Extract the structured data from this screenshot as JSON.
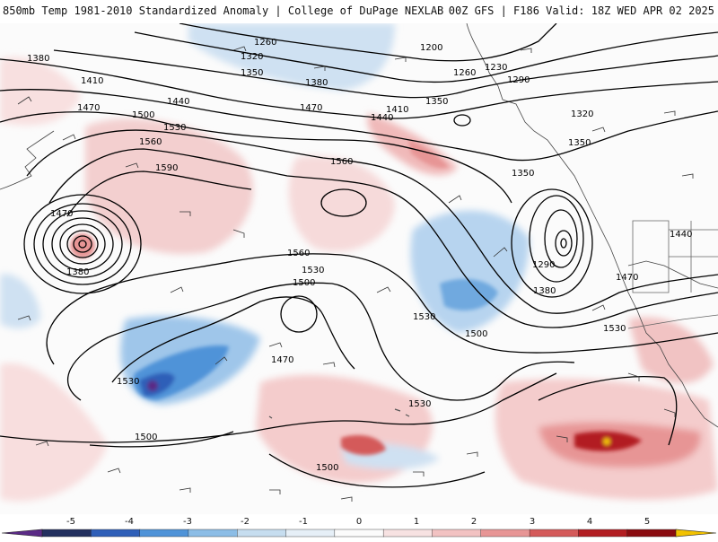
{
  "header": {
    "title": "850mb Temp 1981-2010 Standardized Anomaly | College of DuPage NEXLAB",
    "run_info": "00Z GFS | F186 Valid: 18Z WED APR 02 2025"
  },
  "contour_labels": [
    "1200",
    "1230",
    "1260",
    "1290",
    "1320",
    "1350",
    "1380",
    "1410",
    "1440",
    "1470",
    "1500",
    "1530",
    "1560",
    "1590"
  ],
  "colorbar": {
    "ticks": [
      "-5",
      "-4",
      "-3",
      "-2",
      "-1",
      "0",
      "1",
      "2",
      "3",
      "4",
      "5"
    ],
    "colors": [
      "#5a2a86",
      "#23305f",
      "#2f5fb8",
      "#4f93d8",
      "#8cbde6",
      "#c6ddef",
      "#e6eff7",
      "#fbfbfb",
      "#f7e2e2",
      "#f2c2c2",
      "#e79595",
      "#d45a5a",
      "#b21e22",
      "#8a0c10",
      "#f2c200"
    ]
  }
}
